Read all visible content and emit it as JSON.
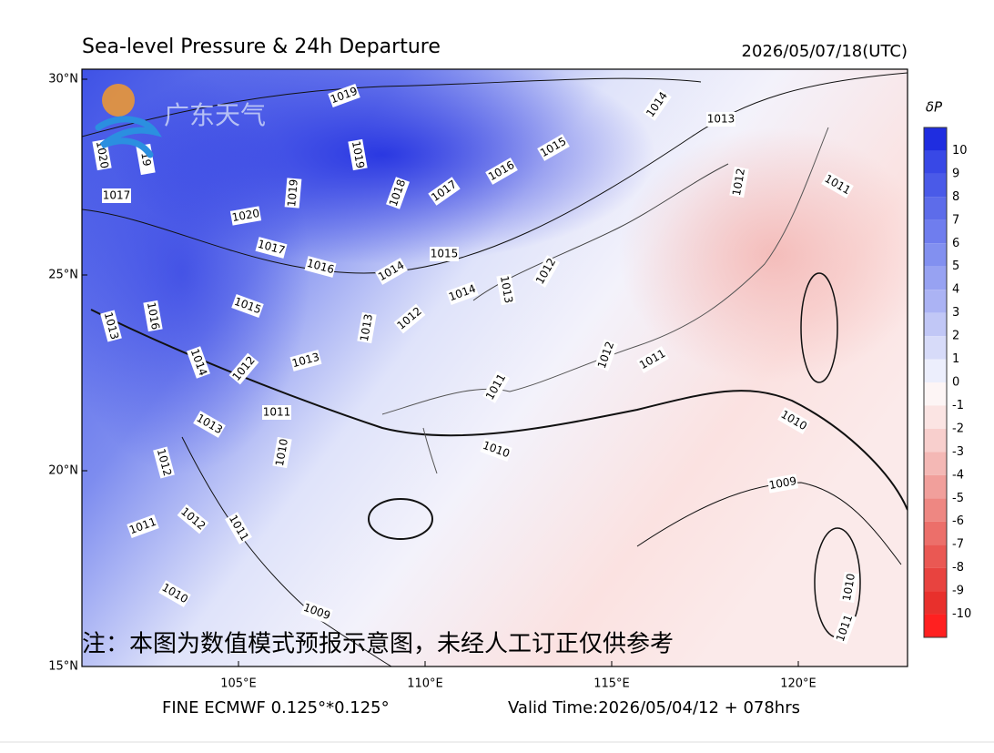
{
  "title": "Sea-level Pressure & 24h Departure",
  "time": "2026/05/07/18(UTC)",
  "lat_ticks": [
    {
      "value": 30,
      "label": "30°N"
    },
    {
      "value": 25,
      "label": "25°N"
    },
    {
      "value": 20,
      "label": "20°N"
    },
    {
      "value": 15,
      "label": "15°N"
    }
  ],
  "lon_ticks": [
    {
      "value": 105,
      "label": "105°E"
    },
    {
      "value": 110,
      "label": "110°E"
    },
    {
      "value": 115,
      "label": "115°E"
    },
    {
      "value": 120,
      "label": "120°E"
    }
  ],
  "colorbar": {
    "label": "δP",
    "levels": [
      10,
      9,
      8,
      7,
      6,
      5,
      4,
      3,
      2,
      1,
      0,
      -1,
      -2,
      -3,
      -4,
      -5,
      -6,
      -7,
      -8,
      -9,
      -10
    ],
    "colors": [
      "#1f2de0",
      "#3848e6",
      "#4a5ae8",
      "#5d6cea",
      "#6f7dee",
      "#8290f0",
      "#97a2f2",
      "#abb3f4",
      "#c1c7f6",
      "#d7dbf9",
      "#eceefc",
      "#fdf5f5",
      "#fbe4e3",
      "#f8cfcd",
      "#f4b8b5",
      "#f19f9b",
      "#ee8782",
      "#ec6f6a",
      "#ea5853",
      "#e8433f",
      "#e8302c",
      "#ff2020"
    ]
  },
  "contour_labels": [
    1019,
    1020,
    19,
    1017,
    1019,
    1019,
    1018,
    1017,
    1016,
    1015,
    1014,
    1013,
    1012,
    1011,
    1020,
    1017,
    1016,
    1015,
    1014,
    1014,
    1013,
    1012,
    1016,
    1015,
    1013,
    1013,
    1012,
    1014,
    1012,
    1013,
    1011,
    1012,
    1011,
    1011,
    1013,
    1010,
    1010,
    1010,
    1012,
    1009,
    1011,
    1012,
    1011,
    1010,
    1009,
    1010,
    1011
  ],
  "logo": "广东天气",
  "note": "注：本图为数值模式预报示意图，未经人工订正仅供参考",
  "footer_left": "FINE ECMWF 0.125°*0.125°",
  "footer_right": "Valid Time:2026/05/04/12 + 078hrs"
}
